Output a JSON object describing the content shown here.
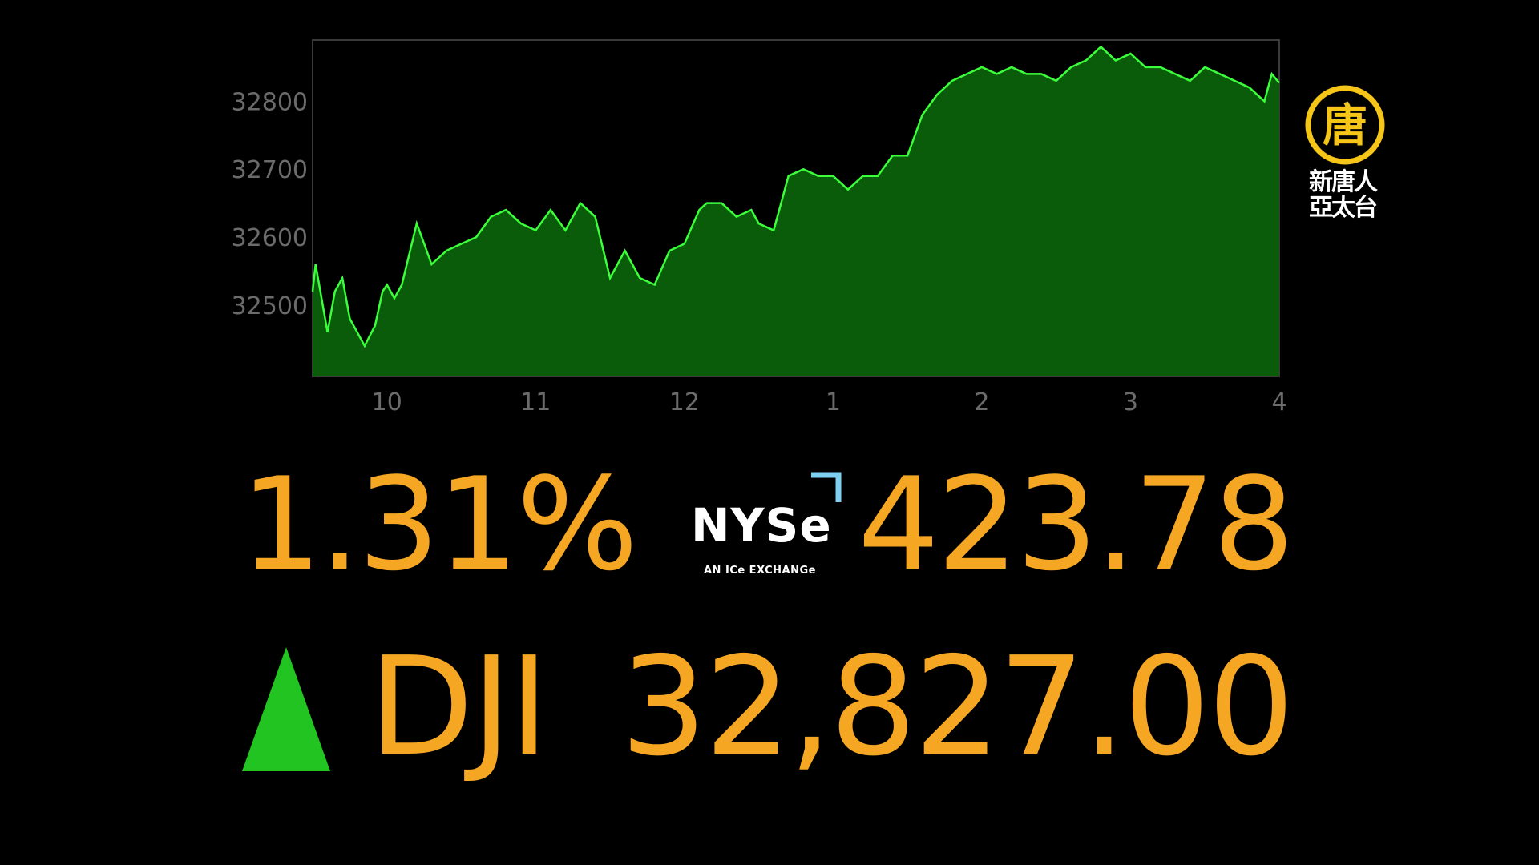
{
  "chart_data": {
    "type": "area",
    "title": "",
    "xlabel": "",
    "ylabel": "",
    "x_ticks": [
      "10",
      "11",
      "12",
      "1",
      "2",
      "3",
      "4"
    ],
    "y_ticks": [
      32500,
      32600,
      32700,
      32800
    ],
    "ylim": [
      32395,
      32890
    ],
    "x_range_hours": [
      9.5,
      16.0
    ],
    "grid": false,
    "legend": "none",
    "fill_color": "#0a5c0a",
    "line_color": "#3cff3c",
    "series": [
      {
        "x": [
          9.5,
          9.52,
          9.6,
          9.65,
          9.7,
          9.75,
          9.8,
          9.85,
          9.92,
          9.97,
          10.0,
          10.05,
          10.1,
          10.2,
          10.25,
          10.3,
          10.35,
          10.4,
          10.5,
          10.6,
          10.7,
          10.8,
          10.9,
          11.0,
          11.1,
          11.2,
          11.3,
          11.35,
          11.4,
          11.5,
          11.6,
          11.7,
          11.8,
          11.9,
          12.0,
          12.1,
          12.15,
          12.25,
          12.35,
          12.45,
          12.5,
          12.6,
          12.7,
          12.8,
          12.9,
          13.0,
          13.1,
          13.2,
          13.3,
          13.4,
          13.5,
          13.6,
          13.7,
          13.8,
          13.9,
          14.0,
          14.1,
          14.2,
          14.3,
          14.4,
          14.5,
          14.6,
          14.7,
          14.8,
          14.9,
          15.0,
          15.1,
          15.2,
          15.3,
          15.4,
          15.5,
          15.6,
          15.7,
          15.8,
          15.9,
          15.95,
          16.0
        ],
        "y": [
          32520,
          32560,
          32460,
          32520,
          32540,
          32480,
          32460,
          32440,
          32470,
          32520,
          32530,
          32510,
          32530,
          32620,
          32590,
          32560,
          32570,
          32580,
          32590,
          32600,
          32630,
          32640,
          32620,
          32610,
          32640,
          32610,
          32650,
          32640,
          32630,
          32540,
          32580,
          32540,
          32530,
          32580,
          32590,
          32640,
          32650,
          32650,
          32630,
          32640,
          32620,
          32610,
          32690,
          32700,
          32690,
          32690,
          32670,
          32690,
          32690,
          32720,
          32720,
          32780,
          32810,
          32830,
          32840,
          32850,
          32840,
          32850,
          32840,
          32840,
          32830,
          32850,
          32860,
          32880,
          32860,
          32870,
          32850,
          32850,
          32840,
          32830,
          32850,
          32840,
          32830,
          32820,
          32800,
          32840,
          32827
        ]
      }
    ]
  },
  "summary": {
    "percent_change": "1.31%",
    "points_change": "423.78",
    "ticker": "DJI",
    "level": "32,827.00",
    "direction": "up",
    "change_color": "#f5a623",
    "up_color": "#22c422"
  },
  "nyse_logo": {
    "name": "NYSe",
    "tagline": "AN ICe EXCHANGe",
    "accent_color": "#7fd0f0"
  },
  "station_logo": {
    "seal_char": "唐",
    "line1": "新唐人",
    "line2": "亞太台",
    "seal_color": "#f5c518"
  }
}
